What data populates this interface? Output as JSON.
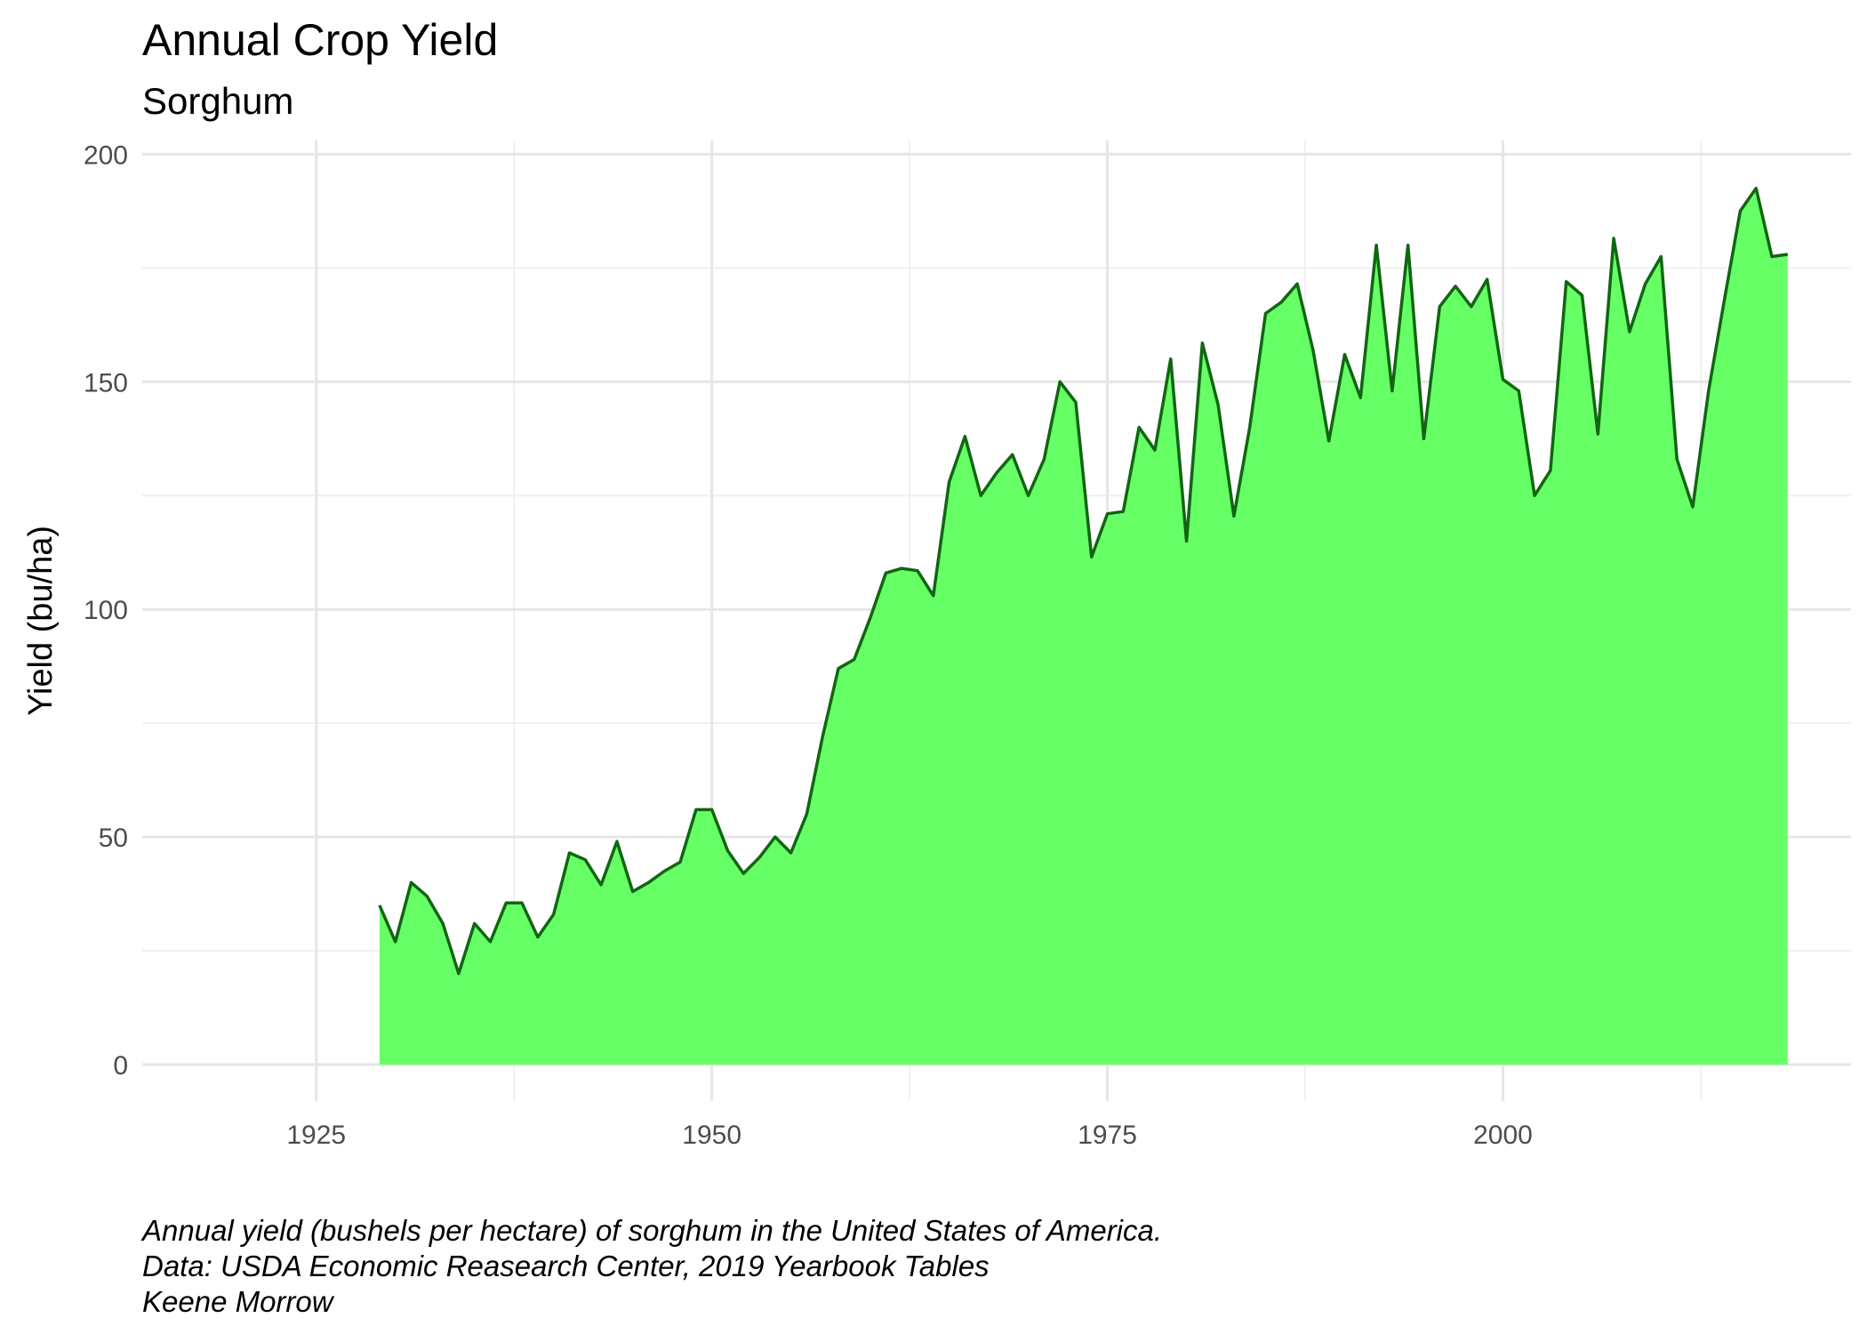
{
  "chart_data": {
    "type": "area",
    "title": "Annual Crop Yield",
    "subtitle": "Sorghum",
    "xlabel": "",
    "ylabel": "Yield (bu/ha)",
    "xlim": [
      1914,
      2022
    ],
    "ylim": [
      -8,
      203
    ],
    "x_ticks": [
      1925,
      1950,
      1975,
      2000
    ],
    "y_ticks": [
      0,
      50,
      100,
      150,
      200
    ],
    "grid": true,
    "legend": "none",
    "fill_color": "#66ff66",
    "line_color": "#116611",
    "caption": [
      "Annual yield (bushels per hectare) of sorghum in the United States of America.",
      "Data: USDA Economic Reasearch Center, 2019 Yearbook Tables",
      "Keene Morrow"
    ],
    "series": [
      {
        "x": [
          1929,
          1930,
          1931,
          1932,
          1933,
          1934,
          1935,
          1936,
          1937,
          1938,
          1939,
          1940,
          1941,
          1942,
          1943,
          1944,
          1945,
          1946,
          1947,
          1948,
          1949,
          1950,
          1951,
          1952,
          1953,
          1954,
          1955,
          1956,
          1957,
          1958,
          1959,
          1960,
          1961,
          1962,
          1963,
          1964,
          1965,
          1966,
          1967,
          1968,
          1969,
          1970,
          1971,
          1972,
          1973,
          1974,
          1975,
          1976,
          1977,
          1978,
          1979,
          1980,
          1981,
          1982,
          1983,
          1984,
          1985,
          1986,
          1987,
          1988,
          1989,
          1990,
          1991,
          1992,
          1993,
          1994,
          1995,
          1996,
          1997,
          1998,
          1999,
          2000,
          2001,
          2002,
          2003,
          2004,
          2005,
          2006,
          2007,
          2008,
          2009,
          2010,
          2011,
          2012,
          2013,
          2014,
          2015,
          2016,
          2017,
          2018
        ],
        "values": [
          35,
          27,
          40,
          37,
          31,
          20,
          31,
          27,
          35.5,
          35.5,
          28,
          33,
          46.5,
          45,
          39.5,
          49,
          38,
          40,
          42.5,
          44.5,
          56,
          56,
          47,
          42,
          45.5,
          50,
          46.5,
          55,
          72,
          87,
          89,
          98,
          108,
          109,
          108.5,
          103,
          128,
          138,
          125,
          130,
          134,
          125,
          133,
          150,
          145.5,
          111.5,
          121,
          121.5,
          140,
          135,
          155,
          115,
          158.5,
          145,
          120.5,
          140,
          165,
          167.5,
          171.5,
          157,
          137,
          156,
          146.5,
          180,
          148,
          180,
          137.5,
          166.5,
          171,
          166.5,
          172.5,
          150.5,
          148,
          125,
          130.5,
          172,
          169,
          138.5,
          181.5,
          161,
          171.5,
          177.5,
          133,
          122.5,
          148,
          168,
          187.5,
          192.5,
          177.5,
          178
        ]
      }
    ]
  }
}
